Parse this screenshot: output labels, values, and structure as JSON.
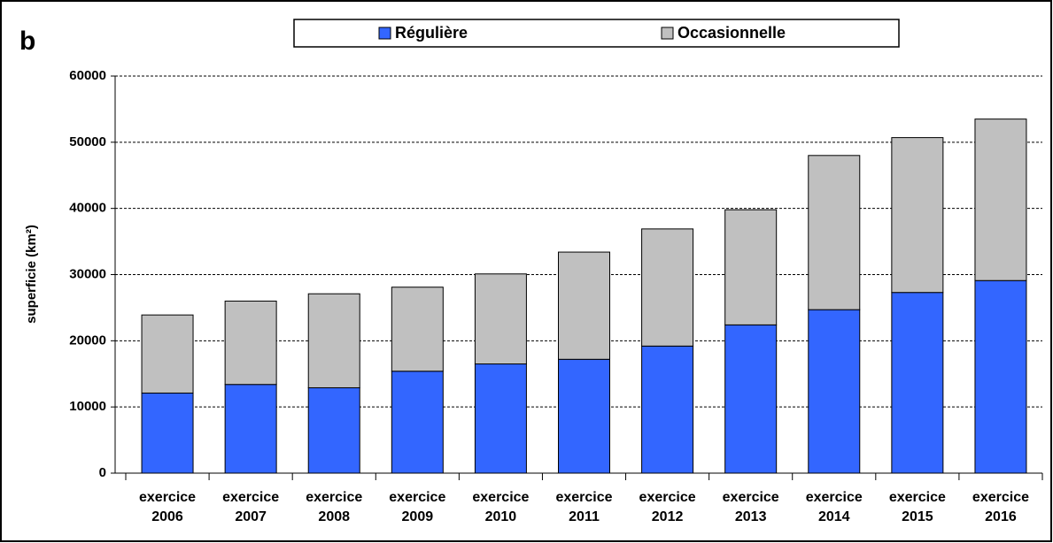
{
  "chart_data": {
    "type": "stacked_bar",
    "panel_label": "b",
    "y_label": "superficie (km²)",
    "categories": [
      "exercice 2006",
      "exercice 2007",
      "exercice 2008",
      "exercice 2009",
      "exercice 2010",
      "exercice 2011",
      "exercice 2012",
      "exercice 2013",
      "exercice 2014",
      "exercice 2015",
      "exercice 2016"
    ],
    "series": [
      {
        "name": "Régulière",
        "color": "#3366ff",
        "values": [
          12100,
          13400,
          12900,
          15400,
          16500,
          17200,
          19200,
          22400,
          24700,
          27300,
          29100
        ]
      },
      {
        "name": "Occasionnelle",
        "color": "#c0c0c0",
        "values": [
          11800,
          12600,
          14200,
          12700,
          13600,
          16200,
          17700,
          17400,
          23300,
          23400,
          24400
        ]
      }
    ],
    "ylim": [
      0,
      60000
    ],
    "yticks": [
      0,
      10000,
      20000,
      30000,
      40000,
      50000,
      60000
    ],
    "grid": true,
    "legend": "top"
  }
}
